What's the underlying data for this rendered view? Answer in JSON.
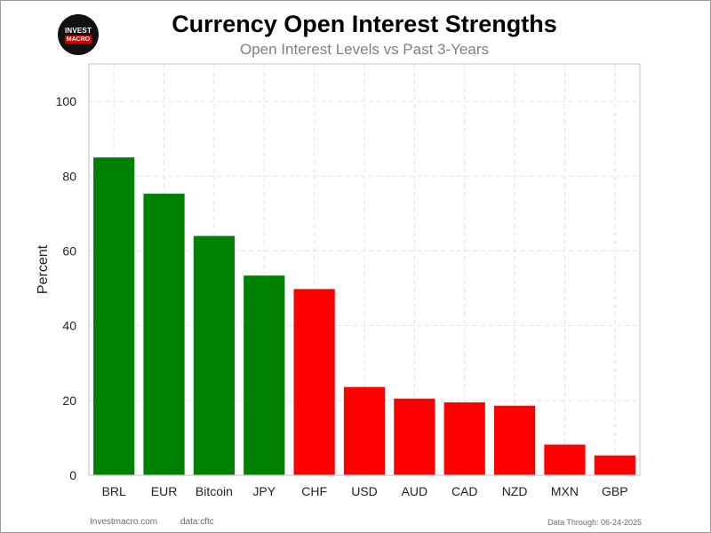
{
  "header": {
    "logo_line1": "INVEST",
    "logo_line2": "MACRO",
    "title": "Currency Open Interest Strengths",
    "subtitle": "Open Interest Levels vs Past 3-Years"
  },
  "footer": {
    "site": "Investmacro.com",
    "source": "data:cftc",
    "date": "Data Through: 06-24-2025"
  },
  "chart_data": {
    "type": "bar",
    "title": "Currency Open Interest Strengths",
    "subtitle": "Open Interest Levels vs Past 3-Years",
    "xlabel": "",
    "ylabel": "Percent",
    "categories": [
      "BRL",
      "EUR",
      "Bitcoin",
      "JPY",
      "CHF",
      "USD",
      "AUD",
      "CAD",
      "NZD",
      "MXN",
      "GBP"
    ],
    "values": [
      85,
      75.3,
      64,
      53.4,
      49.8,
      23.6,
      20.5,
      19.5,
      18.6,
      8.2,
      5.3
    ],
    "bar_colors": [
      "#008000",
      "#008000",
      "#008000",
      "#008000",
      "#ff0000",
      "#ff0000",
      "#ff0000",
      "#ff0000",
      "#ff0000",
      "#ff0000",
      "#ff0000"
    ],
    "ylim": [
      0,
      110
    ],
    "yticks": [
      0,
      20,
      40,
      60,
      80,
      100
    ],
    "grid": true,
    "legend": "none"
  }
}
